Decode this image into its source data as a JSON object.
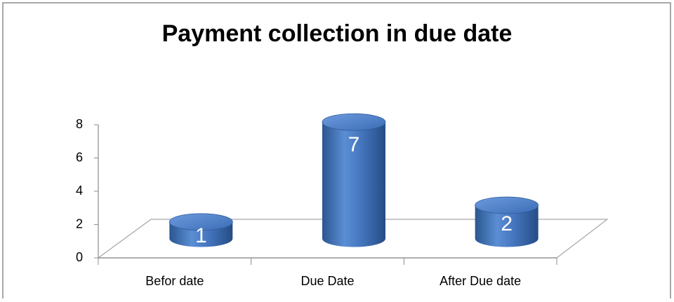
{
  "chart_data": {
    "type": "bar3d-cylinder",
    "title": "Payment collection in due date",
    "categories": [
      "Befor date",
      "Due Date",
      "After Due date"
    ],
    "values": [
      1,
      7,
      2
    ],
    "color": "#3e6fb5",
    "ylim": [
      0,
      8
    ],
    "yticks": [
      0,
      2,
      4,
      6,
      8
    ],
    "grid": false
  }
}
